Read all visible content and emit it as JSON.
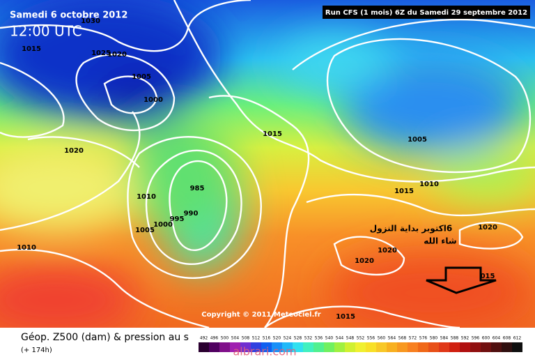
{
  "header": {
    "date": "Samedi 6 octobre 2012",
    "time": "12:00 UTC",
    "run": "Run CFS (1 mois) 6Z du Samedi 29 septembre 2012"
  },
  "isobar_labels": [
    "1030",
    "1015",
    "1025",
    "1020",
    "1005",
    "1000",
    "1020",
    "1015",
    "1010",
    "1005",
    "1000",
    "995",
    "990",
    "985",
    "1010",
    "1005",
    "1010",
    "1015",
    "1020",
    "1020",
    "1020",
    "015",
    "1015"
  ],
  "annotation": [
    "6اكتوبر بداية النزول",
    "شاء الله"
  ],
  "copyright": "Copyright © 2011 Meteociel.fr",
  "footer": {
    "title": "Géop. Z500 (dam) & pression au s",
    "lead": "(+ 174h)",
    "watermark": "albrari.com"
  },
  "scale": [
    492,
    496,
    500,
    504,
    508,
    512,
    516,
    520,
    524,
    528,
    532,
    536,
    540,
    544,
    548,
    552,
    556,
    560,
    564,
    568,
    572,
    576,
    580,
    584,
    588,
    592,
    596,
    600,
    604,
    608,
    612
  ]
}
